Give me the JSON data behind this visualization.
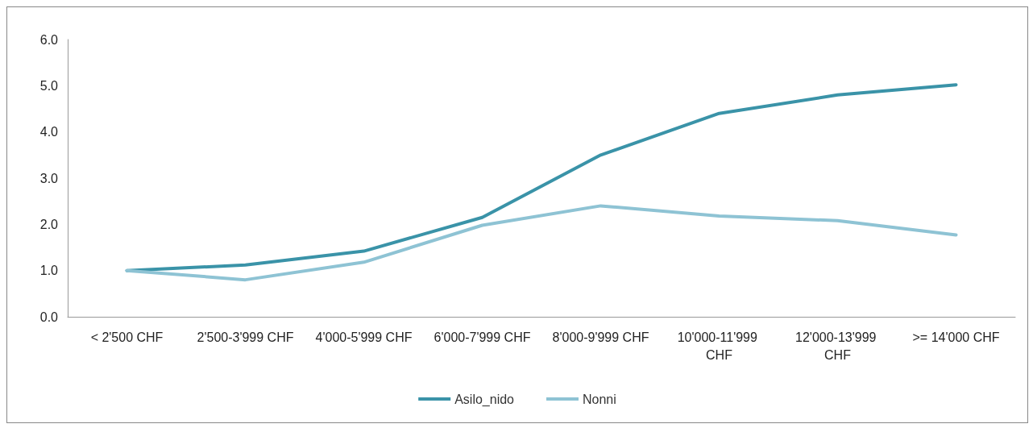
{
  "chart_data": {
    "type": "line",
    "categories": [
      "< 2'500 CHF",
      "2'500-3'999 CHF",
      "4'000-5'999 CHF",
      "6'000-7'999 CHF",
      "8'000-9'999 CHF",
      "10'000-11'999 CHF",
      "12'000-13'999 CHF",
      ">= 14'000 CHF"
    ],
    "series": [
      {
        "name": "Asilo_nido",
        "color": "#3a93a8",
        "values": [
          1.0,
          1.12,
          1.42,
          2.15,
          3.5,
          4.4,
          4.8,
          5.02
        ]
      },
      {
        "name": "Nonni",
        "color": "#8ec3d4",
        "values": [
          1.0,
          0.8,
          1.18,
          1.98,
          2.4,
          2.18,
          2.08,
          1.77
        ]
      }
    ],
    "ylim": [
      0,
      6
    ],
    "yticks": [
      {
        "value": 0,
        "label": "0.0"
      },
      {
        "value": 1,
        "label": "1.0"
      },
      {
        "value": 2,
        "label": "2.0"
      },
      {
        "value": 3,
        "label": "3.0"
      },
      {
        "value": 4,
        "label": "4.0"
      },
      {
        "value": 5,
        "label": "5.0"
      },
      {
        "value": 6,
        "label": "6.0"
      }
    ],
    "grid": false,
    "legend": "bottom",
    "marker": "none",
    "line_style": "solid"
  }
}
